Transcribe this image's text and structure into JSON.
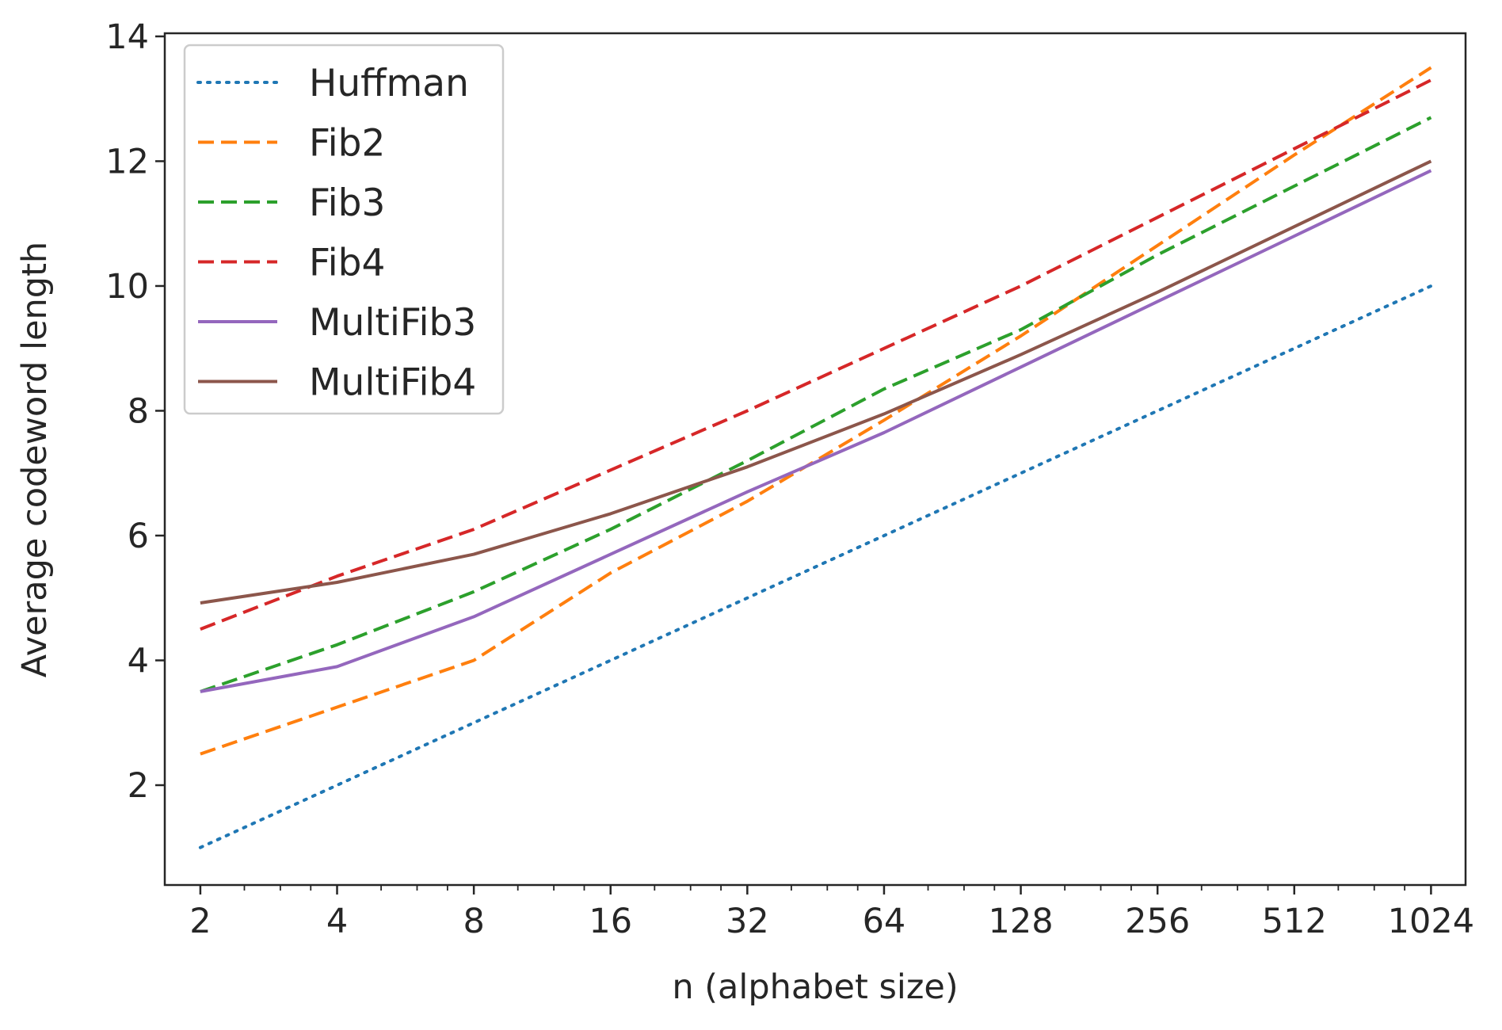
{
  "chart_data": {
    "type": "line",
    "title": "",
    "xlabel": "n (alphabet size)",
    "ylabel": "Average codeword length",
    "x_scale": "log2",
    "x": [
      2,
      4,
      8,
      16,
      32,
      64,
      128,
      256,
      512,
      1024
    ],
    "x_tick_labels": [
      "2",
      "4",
      "8",
      "16",
      "32",
      "64",
      "128",
      "256",
      "512",
      "1024"
    ],
    "y_ticks": [
      2,
      4,
      6,
      8,
      10,
      12,
      14
    ],
    "y_tick_labels": [
      "2",
      "4",
      "6",
      "8",
      "10",
      "12",
      "14"
    ],
    "xlim": [
      1.67,
      1220
    ],
    "ylim": [
      0.4,
      14.05
    ],
    "grid": false,
    "legend_position": "top-left",
    "series": [
      {
        "name": "Huffman",
        "style": "dotted",
        "color": "#1f77b4",
        "values": [
          1.0,
          2.0,
          3.0,
          4.0,
          5.0,
          6.0,
          7.0,
          8.0,
          9.0,
          10.0
        ]
      },
      {
        "name": "Fib2",
        "style": "dashed",
        "color": "#ff7f0e",
        "values": [
          2.5,
          3.25,
          4.0,
          5.4,
          6.55,
          7.85,
          9.2,
          10.65,
          12.1,
          13.5
        ]
      },
      {
        "name": "Fib3",
        "style": "dashed",
        "color": "#2ca02c",
        "values": [
          3.5,
          4.25,
          5.1,
          6.1,
          7.2,
          8.35,
          9.3,
          10.5,
          11.6,
          12.7
        ]
      },
      {
        "name": "Fib4",
        "style": "dashed",
        "color": "#d62728",
        "values": [
          4.5,
          5.35,
          6.1,
          7.05,
          8.0,
          9.0,
          10.0,
          11.1,
          12.2,
          13.3
        ]
      },
      {
        "name": "MultiFib3",
        "style": "solid",
        "color": "#9467bd",
        "values": [
          3.5,
          3.9,
          4.7,
          5.7,
          6.7,
          7.65,
          8.7,
          9.75,
          10.8,
          11.85
        ]
      },
      {
        "name": "MultiFib4",
        "style": "solid",
        "color": "#8c564b",
        "values": [
          4.92,
          5.25,
          5.7,
          6.35,
          7.1,
          7.95,
          8.9,
          9.9,
          10.95,
          12.0
        ]
      }
    ]
  }
}
